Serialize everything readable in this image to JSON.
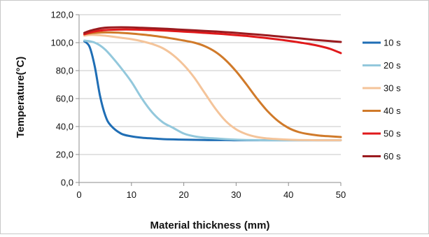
{
  "chart_data": {
    "type": "line",
    "xlabel": "Material thickness (mm)",
    "ylabel": "Temperature(°C)",
    "xlim": [
      0,
      50
    ],
    "ylim": [
      0,
      120
    ],
    "x_ticks": [
      "0",
      "10",
      "20",
      "30",
      "40",
      "50"
    ],
    "y_ticks": [
      "0,0",
      "20,0",
      "40,0",
      "60,0",
      "80,0",
      "100,0",
      "120,0"
    ],
    "grid": "horizontal",
    "legend_position": "right",
    "x": [
      1,
      2,
      3,
      4,
      5,
      6,
      8,
      10,
      12,
      14,
      16,
      18,
      20,
      22,
      24,
      26,
      28,
      30,
      32,
      34,
      36,
      38,
      40,
      42,
      44,
      46,
      48,
      50
    ],
    "series": [
      {
        "name": "10 s",
        "color": "#1f6eb5",
        "values": [
          101,
          97,
          83,
          62,
          48,
          41,
          35,
          33,
          32,
          31.5,
          31,
          30.8,
          30.6,
          30.5,
          30.4,
          30.3,
          30.3,
          30.2,
          30.2,
          30.2,
          30.2,
          30.2,
          30.2,
          30.2,
          30.2,
          30.2,
          30.2,
          30.2
        ]
      },
      {
        "name": "20 s",
        "color": "#93c8dc",
        "values": [
          101.5,
          101,
          100,
          98,
          95,
          91,
          82,
          72,
          60,
          50,
          43,
          39,
          35,
          33,
          32,
          31.5,
          31,
          30.6,
          30.4,
          30.3,
          30.2,
          30.2,
          30.2,
          30.2,
          30.2,
          30.2,
          30.2,
          30.2
        ]
      },
      {
        "name": "30 s",
        "color": "#f4c49a",
        "values": [
          105,
          105.5,
          105.5,
          105.3,
          105,
          104.5,
          103.5,
          102.5,
          101,
          99,
          96,
          91,
          84,
          75,
          64,
          53,
          44,
          38,
          34.5,
          32.5,
          31.5,
          31,
          30.6,
          30.4,
          30.3,
          30.2,
          30.2,
          30.2
        ]
      },
      {
        "name": "40 s",
        "color": "#d07a2a",
        "values": [
          106,
          106.6,
          107,
          107.2,
          107.3,
          107.3,
          107,
          106.5,
          105.8,
          105,
          104,
          102.8,
          101.5,
          100,
          97.5,
          93.5,
          87.5,
          79.5,
          70,
          60,
          51,
          44,
          39,
          36,
          34.5,
          33.5,
          33,
          32.5
        ]
      },
      {
        "name": "50 s",
        "color": "#e0191b",
        "values": [
          106,
          107.2,
          108,
          108.6,
          109,
          109.2,
          109.4,
          109.4,
          109.2,
          109,
          108.7,
          108.3,
          107.9,
          107.5,
          107,
          106.5,
          106,
          105.4,
          104.8,
          104,
          103.2,
          102.3,
          101.3,
          100.2,
          99,
          97.5,
          95.5,
          92.5
        ]
      },
      {
        "name": "60 s",
        "color": "#9b1b1f",
        "values": [
          107,
          108.4,
          109.4,
          110.2,
          110.7,
          110.9,
          111,
          110.9,
          110.6,
          110.3,
          110,
          109.6,
          109.2,
          108.8,
          108.4,
          108,
          107.5,
          107,
          106.4,
          105.8,
          105.2,
          104.5,
          103.8,
          103.1,
          102.4,
          101.7,
          101.1,
          100.5
        ]
      }
    ]
  }
}
